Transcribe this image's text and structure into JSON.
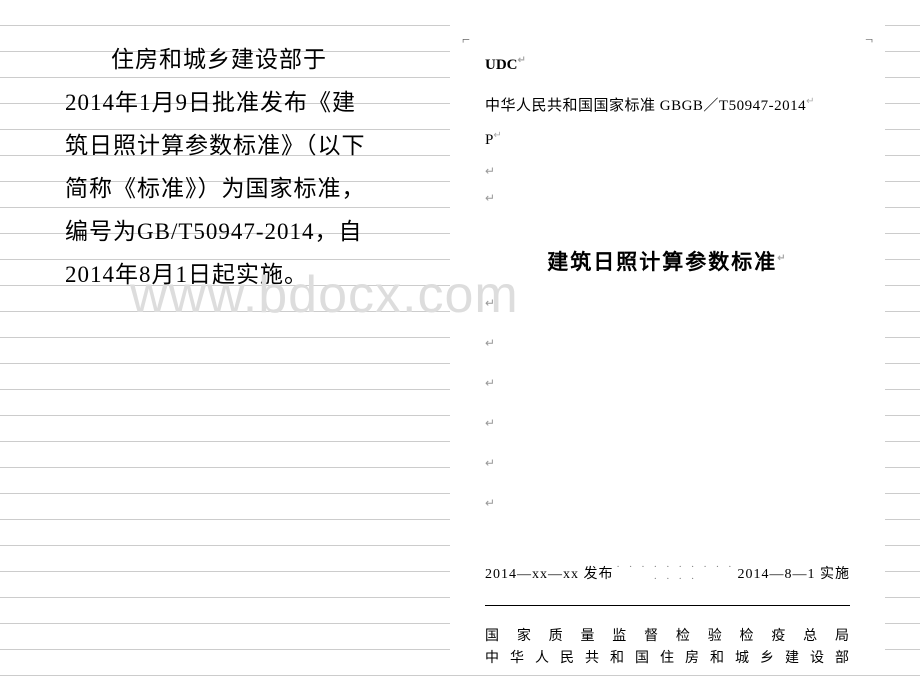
{
  "left_column": {
    "paragraph": "住房和城乡建设部于2014年1月9日批准发布《建筑日照计算参数标准》（以下简称《标准》）为国家标准，编号为GB/T50947-2014，自2014年8月1日起实施。"
  },
  "right_document": {
    "udc_label": "UDC",
    "gb_header": "中华人民共和国国家标准 GBGB／T50947-2014",
    "p_marker": "P",
    "title": "建筑日照计算参数标准",
    "publish_date": "2014—xx—xx 发布",
    "implement_date": "2014—8—1 实施",
    "dots": "· · · · · · · · · · · · · ·",
    "footer_line1": "国 家 质 量 监 督 检 验 检 疫 总 局",
    "footer_line2": "中 华 人 民 共 和 国 住 房 和 城 乡 建 设 部",
    "return_symbol": "↵"
  },
  "watermark": {
    "text": "www.bdocx.com"
  },
  "colors": {
    "text": "#000000",
    "watermark": "#dddddd",
    "rule_line": "#cccccc",
    "background": "#ffffff",
    "return_mark": "#999999"
  },
  "typography": {
    "left_fontsize": 23,
    "left_lineheight": 43,
    "doc_title_fontsize": 21,
    "doc_body_fontsize": 15,
    "watermark_fontsize": 52
  }
}
